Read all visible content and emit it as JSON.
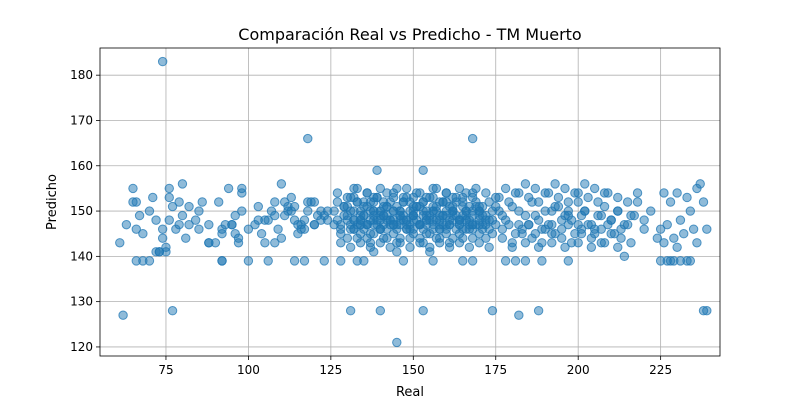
{
  "chart_data": {
    "type": "scatter",
    "title": "Comparación Real vs Predicho - TM Muerto",
    "xlabel": "Real",
    "ylabel": "Predicho",
    "xlim": [
      55,
      243
    ],
    "ylim": [
      118,
      186
    ],
    "xticks": [
      "75",
      "100",
      "125",
      "150",
      "175",
      "200",
      "225"
    ],
    "yticks": [
      "120",
      "130",
      "140",
      "150",
      "160",
      "170",
      "180"
    ],
    "xtick_values": [
      75,
      100,
      125,
      150,
      175,
      200,
      225
    ],
    "ytick_values": [
      120,
      130,
      140,
      150,
      160,
      170,
      180
    ],
    "grid": true,
    "color": "#1f77b4",
    "series": [
      {
        "x": [
          74,
          118,
          168,
          139,
          153,
          62,
          77,
          131,
          140,
          153,
          182,
          188,
          174,
          239,
          145,
          61,
          63,
          65,
          66,
          67,
          68,
          70,
          71,
          72,
          73,
          74,
          75,
          76,
          77,
          78,
          79,
          80,
          81,
          82,
          84,
          86,
          88,
          90,
          92,
          94,
          95,
          96,
          97,
          98,
          100,
          102,
          104,
          105,
          106,
          108,
          109,
          110,
          111,
          112,
          113,
          114,
          115,
          116,
          117,
          118,
          119,
          120,
          121,
          122,
          123,
          124,
          66,
          70,
          74,
          76,
          79,
          82,
          88,
          92,
          96,
          98,
          105,
          110,
          112,
          115,
          118,
          122,
          65,
          72,
          76,
          80,
          85,
          91,
          95,
          98,
          103,
          107,
          111,
          114,
          117,
          120,
          124,
          66,
          68,
          73,
          75,
          92,
          97,
          106,
          117,
          123,
          128,
          133,
          138,
          147,
          156,
          168,
          178,
          181,
          184,
          189,
          197,
          214,
          228,
          234,
          126,
          127,
          128,
          129,
          130,
          131,
          132,
          133,
          134,
          135,
          136,
          137,
          138,
          139,
          140,
          141,
          142,
          143,
          144,
          145,
          146,
          147,
          148,
          149,
          150,
          151,
          152,
          153,
          154,
          155,
          156,
          157,
          158,
          159,
          160,
          161,
          162,
          163,
          164,
          165,
          166,
          167,
          168,
          169,
          170,
          171,
          172,
          173,
          174,
          175,
          126,
          128,
          130,
          131,
          132,
          133,
          134,
          135,
          136,
          137,
          138,
          139,
          140,
          141,
          142,
          143,
          144,
          145,
          146,
          147,
          148,
          149,
          150,
          151,
          152,
          153,
          154,
          155,
          156,
          157,
          158,
          159,
          160,
          161,
          162,
          163,
          164,
          165,
          166,
          167,
          168,
          169,
          170,
          171,
          172,
          173,
          174,
          175,
          127,
          129,
          131,
          133,
          135,
          137,
          139,
          141,
          143,
          145,
          147,
          149,
          151,
          153,
          155,
          157,
          159,
          161,
          163,
          165,
          167,
          169,
          171,
          173,
          128,
          130,
          132,
          134,
          136,
          138,
          140,
          142,
          144,
          146,
          148,
          150,
          152,
          154,
          156,
          158,
          160,
          162,
          164,
          166,
          168,
          170,
          172,
          174,
          127,
          130,
          133,
          136,
          139,
          142,
          145,
          148,
          151,
          154,
          157,
          160,
          163,
          166,
          169,
          172,
          175,
          128,
          131,
          134,
          137,
          140,
          143,
          146,
          149,
          152,
          155,
          158,
          161,
          164,
          167,
          170,
          173,
          129,
          132,
          135,
          138,
          141,
          144,
          147,
          150,
          153,
          156,
          159,
          162,
          165,
          168,
          171,
          130,
          132,
          134,
          136,
          138,
          140,
          142,
          144,
          146,
          148,
          150,
          152,
          154,
          156,
          158,
          160,
          162,
          164,
          166,
          168,
          170,
          131,
          134,
          137,
          140,
          143,
          146,
          149,
          152,
          155,
          158,
          161,
          164,
          167,
          170,
          132,
          135,
          138,
          141,
          144,
          147,
          150,
          153,
          156,
          159,
          162,
          165,
          168,
          133,
          137,
          141,
          145,
          149,
          153,
          157,
          161,
          165,
          132,
          136,
          140,
          144,
          148,
          152,
          156,
          160,
          164,
          168,
          134,
          138,
          142,
          146,
          150,
          154,
          158,
          162,
          166,
          176,
          178,
          180,
          182,
          184,
          186,
          188,
          190,
          192,
          194,
          196,
          198,
          200,
          202,
          204,
          206,
          208,
          210,
          212,
          214,
          216,
          218,
          220,
          177,
          179,
          181,
          183,
          185,
          187,
          189,
          191,
          193,
          195,
          197,
          199,
          201,
          203,
          205,
          207,
          209,
          211,
          213,
          176,
          179,
          182,
          185,
          188,
          191,
          194,
          197,
          200,
          203,
          206,
          209,
          212,
          215,
          218,
          177,
          180,
          183,
          186,
          189,
          192,
          195,
          198,
          201,
          204,
          207,
          210,
          213,
          178,
          181,
          184,
          187,
          190,
          193,
          196,
          199,
          202,
          205,
          208,
          180,
          184,
          188,
          192,
          196,
          200,
          204,
          208,
          212,
          216,
          177,
          182,
          187,
          192,
          197,
          202,
          207,
          212,
          217,
          222,
          224,
          225,
          226,
          227,
          228,
          229,
          230,
          231,
          232,
          233,
          234,
          235,
          236,
          237,
          238,
          239,
          225,
          227,
          229,
          231,
          233,
          238,
          226,
          230,
          236,
          134,
          138,
          142,
          146,
          150,
          154,
          158,
          162,
          166,
          170,
          136,
          140,
          144,
          148,
          152,
          156,
          160,
          164,
          168,
          172,
          135,
          145,
          155,
          165,
          185,
          190,
          195,
          200,
          205,
          210,
          215,
          220,
          193,
          197,
          201,
          85,
          88,
          93,
          103,
          108,
          113,
          116,
          140,
          150,
          160,
          170,
          92,
          100,
          108,
          114,
          120
        ],
        "y": [
          183,
          166,
          166,
          159,
          159,
          127,
          128,
          128,
          128,
          128,
          127,
          128,
          128,
          128,
          121,
          143,
          147,
          155,
          152,
          149,
          145,
          139,
          153,
          141,
          141,
          146,
          142,
          155,
          151,
          146,
          152,
          156,
          144,
          147,
          148,
          152,
          143,
          143,
          146,
          155,
          147,
          145,
          143,
          155,
          146,
          147,
          145,
          143,
          148,
          149,
          146,
          144,
          152,
          151,
          153,
          148,
          145,
          147,
          146,
          150,
          152,
          147,
          149,
          148,
          149,
          148,
          146,
          150,
          144,
          148,
          147,
          151,
          143,
          145,
          149,
          154,
          148,
          156,
          150,
          147,
          152,
          150,
          152,
          148,
          153,
          149,
          146,
          152,
          147,
          150,
          148,
          150,
          149,
          151,
          148,
          152,
          150,
          139,
          139,
          141,
          141,
          139,
          144,
          139,
          139,
          139,
          139,
          139,
          141,
          139,
          139,
          139,
          139,
          139,
          139,
          139,
          139,
          140,
          139,
          139,
          150,
          148,
          147,
          151,
          149,
          150,
          148,
          152,
          147,
          149,
          151,
          150,
          148,
          147,
          150,
          149,
          151,
          148,
          150,
          147,
          149,
          152,
          148,
          150,
          149,
          151,
          147,
          150,
          148,
          149,
          151,
          150,
          147,
          149,
          152,
          148,
          150,
          149,
          147,
          151,
          150,
          148,
          149,
          151,
          150,
          147,
          149,
          148,
          150,
          151,
          147,
          146,
          148,
          147,
          146,
          147,
          148,
          146,
          147,
          145,
          147,
          148,
          146,
          147,
          146,
          148,
          147,
          146,
          147,
          148,
          146,
          147,
          146,
          148,
          147,
          146,
          147,
          145,
          147,
          148,
          146,
          147,
          146,
          147,
          148,
          146,
          147,
          146,
          148,
          147,
          146,
          147,
          148,
          146,
          147,
          146,
          148,
          147,
          152,
          151,
          153,
          152,
          151,
          152,
          153,
          151,
          152,
          151,
          153,
          152,
          151,
          152,
          153,
          151,
          152,
          151,
          152,
          153,
          151,
          152,
          151,
          152,
          145,
          144,
          146,
          145,
          144,
          145,
          146,
          144,
          145,
          144,
          146,
          145,
          144,
          145,
          146,
          144,
          145,
          144,
          145,
          146,
          144,
          145,
          144,
          145,
          154,
          153,
          155,
          154,
          153,
          154,
          155,
          153,
          154,
          153,
          155,
          154,
          153,
          154,
          155,
          154,
          153,
          143,
          142,
          143,
          142,
          143,
          142,
          143,
          142,
          143,
          142,
          143,
          142,
          143,
          142,
          143,
          142,
          149,
          150,
          149,
          150,
          149,
          150,
          149,
          150,
          149,
          150,
          149,
          150,
          149,
          150,
          149,
          151,
          148,
          150,
          147,
          152,
          149,
          151,
          148,
          150,
          147,
          149,
          151,
          148,
          150,
          152,
          149,
          151,
          148,
          150,
          147,
          149,
          146,
          147,
          148,
          146,
          147,
          148,
          146,
          147,
          148,
          146,
          147,
          148,
          146,
          147,
          153,
          152,
          153,
          152,
          153,
          152,
          153,
          152,
          153,
          152,
          153,
          152,
          153,
          144,
          143,
          144,
          143,
          144,
          143,
          144,
          143,
          144,
          155,
          154,
          155,
          154,
          155,
          154,
          155,
          154,
          155,
          154,
          148,
          149,
          148,
          149,
          148,
          149,
          148,
          149,
          148,
          150,
          148,
          151,
          147,
          149,
          152,
          148,
          150,
          147,
          151,
          149,
          148,
          152,
          150,
          147,
          149,
          151,
          148,
          150,
          147,
          149,
          152,
          148,
          146,
          147,
          145,
          146,
          147,
          145,
          146,
          147,
          145,
          146,
          147,
          145,
          146,
          147,
          145,
          146,
          147,
          145,
          146,
          153,
          152,
          154,
          153,
          152,
          154,
          153,
          152,
          154,
          153,
          152,
          154,
          153,
          152,
          154,
          144,
          143,
          145,
          144,
          143,
          145,
          144,
          143,
          145,
          144,
          143,
          145,
          144,
          155,
          154,
          156,
          155,
          154,
          156,
          155,
          154,
          156,
          155,
          154,
          142,
          143,
          142,
          143,
          142,
          143,
          142,
          143,
          142,
          143,
          149,
          150,
          149,
          150,
          149,
          150,
          149,
          150,
          149,
          150,
          144,
          146,
          143,
          147,
          152,
          144,
          154,
          148,
          145,
          153,
          150,
          146,
          155,
          156,
          152,
          146,
          139,
          139,
          139,
          139,
          139,
          128,
          154,
          142,
          143,
          149,
          150,
          149,
          150,
          149,
          150,
          149,
          150,
          149,
          150,
          147,
          148,
          147,
          148,
          147,
          148,
          147,
          148,
          147,
          148,
          139,
          141,
          141,
          139,
          147,
          146,
          148,
          147,
          146,
          148,
          147,
          146,
          151,
          150,
          149,
          150,
          147,
          147,
          151,
          152,
          150,
          146,
          150,
          151,
          150,
          151,
          139,
          139,
          143,
          139,
          147
        ]
      }
    ]
  }
}
